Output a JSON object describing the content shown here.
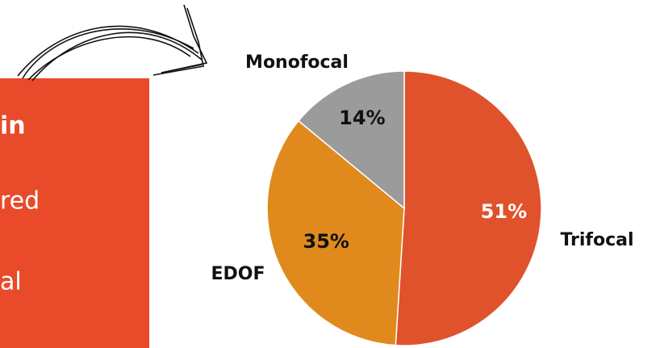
{
  "panel": {
    "lines": [
      "in",
      "red",
      "al"
    ],
    "color": "#e84a2a"
  },
  "chart_data": {
    "type": "pie",
    "categories": [
      "Trifocal",
      "EDOF",
      "Monofocal"
    ],
    "values": [
      51,
      35,
      14
    ],
    "value_labels": [
      "51%",
      "35%",
      "14%"
    ],
    "colors": [
      "#e0522c",
      "#e08a1e",
      "#9b9b9b"
    ]
  }
}
